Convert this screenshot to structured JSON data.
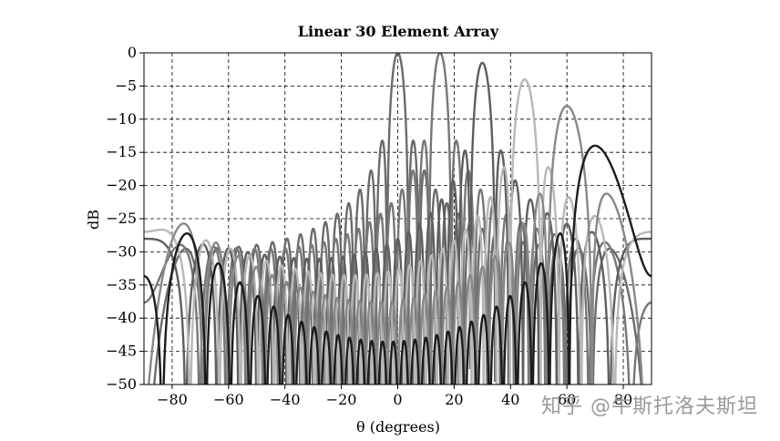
{
  "chart_data": {
    "type": "line",
    "title": "Linear 30 Element Array",
    "xlabel": "θ (degrees)",
    "ylabel": "dB",
    "xlim": [
      -90,
      90
    ],
    "ylim": [
      -50,
      0
    ],
    "xticks": [
      -80,
      -60,
      -40,
      -20,
      0,
      20,
      40,
      60,
      80
    ],
    "yticks": [
      0,
      -5,
      -10,
      -15,
      -20,
      -25,
      -30,
      -35,
      -40,
      -45,
      -50
    ],
    "xtick_labels": [
      "−80",
      "−60",
      "−40",
      "−20",
      "0",
      "20",
      "40",
      "60",
      "80"
    ],
    "ytick_labels": [
      "0",
      "−5",
      "−10",
      "−15",
      "−20",
      "−25",
      "−30",
      "−35",
      "−40",
      "−45",
      "−50"
    ],
    "grid": true,
    "elements": 30,
    "series": [
      {
        "steer_deg": 0,
        "peak_db": 0,
        "color": "#6b6b6b"
      },
      {
        "steer_deg": 15,
        "peak_db": 0,
        "color": "#777777"
      },
      {
        "steer_deg": 30,
        "peak_db": -1.5,
        "color": "#5e5e5e"
      },
      {
        "steer_deg": 45,
        "peak_db": -4,
        "color": "#b8b8b8"
      },
      {
        "steer_deg": 60,
        "peak_db": -8,
        "color": "#888888"
      },
      {
        "steer_deg": 70,
        "peak_db": -14,
        "color": "#1c1c1c"
      }
    ]
  },
  "watermark": "知乎 @牛斯托洛夫斯坦"
}
